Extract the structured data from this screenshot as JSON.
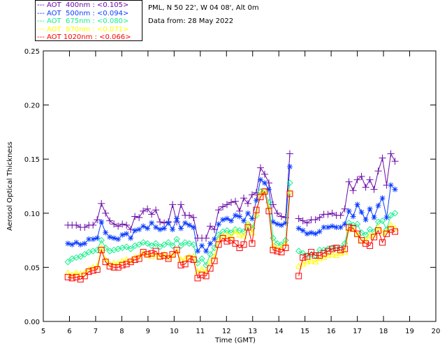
{
  "header": {
    "location": "PML, N 50 22', W 04 08', Alt 0m",
    "date": "Data from: 28 May 2022"
  },
  "chart_data": {
    "type": "line",
    "title": "",
    "xlabel": "Time (GMT)",
    "ylabel": "Aerosol Optical Thickness",
    "xlim": [
      5,
      20
    ],
    "ylim": [
      0,
      0.25
    ],
    "xticks": [
      "5",
      "6",
      "7",
      "8",
      "9",
      "10",
      "11",
      "12",
      "13",
      "14",
      "15",
      "16",
      "17",
      "18",
      "19",
      "20"
    ],
    "yticks": [
      "0.00",
      "0.05",
      "0.10",
      "0.15",
      "0.20",
      "0.25"
    ],
    "legend_position": "top-left-outside",
    "segments": [
      {
        "t_start": 5.94,
        "t_step": 0.16,
        "count": 54
      },
      {
        "t_start": 14.76,
        "t_step": 0.16,
        "count": 24
      }
    ],
    "series": [
      {
        "name": "AOT  400nm : <0.105>",
        "color": "#6a0aa8",
        "marker": "plus",
        "values": [
          [
            0.089,
            0.089,
            0.089,
            0.087,
            0.087,
            0.089,
            0.089,
            0.094,
            0.109,
            0.1,
            0.093,
            0.09,
            0.088,
            0.09,
            0.089,
            0.085,
            0.097,
            0.096,
            0.102,
            0.104,
            0.099,
            0.103,
            0.092,
            0.091,
            0.092,
            0.108,
            0.092,
            0.108,
            0.098,
            0.098,
            0.096,
            0.077,
            0.077,
            0.077,
            0.088,
            0.085,
            0.103,
            0.106,
            0.108,
            0.11,
            0.111,
            0.102,
            0.114,
            0.109,
            0.117,
            0.119,
            0.142,
            0.136,
            0.128,
            0.108,
            0.1,
            0.097,
            0.096,
            0.155
          ],
          [
            0.095,
            0.093,
            0.091,
            0.094,
            0.094,
            0.096,
            0.099,
            0.099,
            0.1,
            0.098,
            0.098,
            0.104,
            0.129,
            0.121,
            0.131,
            0.134,
            0.124,
            0.131,
            0.122,
            0.139,
            0.151,
            0.126,
            0.155,
            0.148
          ]
        ]
      },
      {
        "name": "AOT  500nm : <0.094>",
        "color": "#0a3cff",
        "marker": "asterisk",
        "values": [
          [
            0.072,
            0.071,
            0.073,
            0.071,
            0.072,
            0.076,
            0.076,
            0.077,
            0.092,
            0.082,
            0.078,
            0.077,
            0.076,
            0.08,
            0.081,
            0.077,
            0.084,
            0.085,
            0.088,
            0.086,
            0.091,
            0.087,
            0.085,
            0.086,
            0.091,
            0.085,
            0.095,
            0.086,
            0.091,
            0.089,
            0.087,
            0.065,
            0.07,
            0.065,
            0.072,
            0.076,
            0.09,
            0.094,
            0.095,
            0.093,
            0.098,
            0.097,
            0.093,
            0.1,
            0.095,
            0.112,
            0.131,
            0.128,
            0.122,
            0.092,
            0.09,
            0.089,
            0.091,
            0.143
          ],
          [
            0.086,
            0.084,
            0.081,
            0.082,
            0.081,
            0.083,
            0.087,
            0.087,
            0.088,
            0.087,
            0.087,
            0.09,
            0.102,
            0.097,
            0.108,
            0.101,
            0.094,
            0.104,
            0.096,
            0.107,
            0.114,
            0.096,
            0.126,
            0.122
          ]
        ]
      },
      {
        "name": "AOT  675nm : <0.080>",
        "color": "#14f08c",
        "marker": "diamond",
        "values": [
          [
            0.055,
            0.058,
            0.059,
            0.06,
            0.062,
            0.064,
            0.065,
            0.066,
            0.075,
            0.068,
            0.065,
            0.066,
            0.067,
            0.068,
            0.069,
            0.067,
            0.07,
            0.071,
            0.073,
            0.072,
            0.07,
            0.072,
            0.069,
            0.071,
            0.073,
            0.07,
            0.076,
            0.07,
            0.073,
            0.072,
            0.071,
            0.054,
            0.058,
            0.052,
            0.062,
            0.068,
            0.08,
            0.083,
            0.084,
            0.082,
            0.085,
            0.084,
            0.083,
            0.09,
            0.086,
            0.098,
            0.12,
            0.12,
            0.11,
            0.077,
            0.072,
            0.071,
            0.075,
            0.128
          ],
          [
            0.065,
            0.063,
            0.061,
            0.062,
            0.061,
            0.066,
            0.066,
            0.067,
            0.068,
            0.068,
            0.068,
            0.072,
            0.091,
            0.089,
            0.09,
            0.082,
            0.08,
            0.085,
            0.083,
            0.092,
            0.093,
            0.085,
            0.098,
            0.1
          ]
        ]
      },
      {
        "name": "AOT  870nm : <0.071>",
        "color": "#ffff00",
        "marker": "triangle",
        "values": [
          [
            0.045,
            0.043,
            0.045,
            0.044,
            0.045,
            0.048,
            0.05,
            0.051,
            0.068,
            0.057,
            0.053,
            0.054,
            0.054,
            0.056,
            0.057,
            0.056,
            0.059,
            0.06,
            0.063,
            0.062,
            0.06,
            0.062,
            0.06,
            0.062,
            0.059,
            0.061,
            0.065,
            0.057,
            0.058,
            0.06,
            0.06,
            0.046,
            0.048,
            0.046,
            0.055,
            0.06,
            0.075,
            0.079,
            0.08,
            0.078,
            0.083,
            0.08,
            0.079,
            0.09,
            0.082,
            0.099,
            0.118,
            0.12,
            0.105,
            0.07,
            0.068,
            0.068,
            0.072,
            0.12
          ],
          [
            0.051,
            0.053,
            0.055,
            0.056,
            0.055,
            0.058,
            0.059,
            0.061,
            0.062,
            0.061,
            0.063,
            0.064,
            0.085,
            0.085,
            0.08,
            0.075,
            0.075,
            0.079,
            0.08,
            0.087,
            0.082,
            0.083,
            0.089,
            0.086
          ]
        ]
      },
      {
        "name": "AOT 1020nm : <0.066>",
        "color": "#ff0000",
        "marker": "square",
        "values": [
          [
            0.041,
            0.04,
            0.041,
            0.039,
            0.042,
            0.046,
            0.047,
            0.048,
            0.066,
            0.055,
            0.051,
            0.05,
            0.05,
            0.052,
            0.053,
            0.055,
            0.057,
            0.058,
            0.064,
            0.062,
            0.063,
            0.065,
            0.06,
            0.061,
            0.058,
            0.062,
            0.066,
            0.052,
            0.053,
            0.058,
            0.057,
            0.04,
            0.043,
            0.042,
            0.049,
            0.056,
            0.071,
            0.077,
            0.074,
            0.075,
            0.072,
            0.068,
            0.071,
            0.087,
            0.072,
            0.103,
            0.115,
            0.12,
            0.102,
            0.066,
            0.065,
            0.064,
            0.068,
            0.118
          ],
          [
            0.042,
            0.059,
            0.06,
            0.064,
            0.061,
            0.061,
            0.063,
            0.065,
            0.067,
            0.068,
            0.066,
            0.067,
            0.087,
            0.086,
            0.081,
            0.075,
            0.072,
            0.07,
            0.078,
            0.084,
            0.073,
            0.081,
            0.085,
            0.083
          ]
        ]
      }
    ]
  }
}
